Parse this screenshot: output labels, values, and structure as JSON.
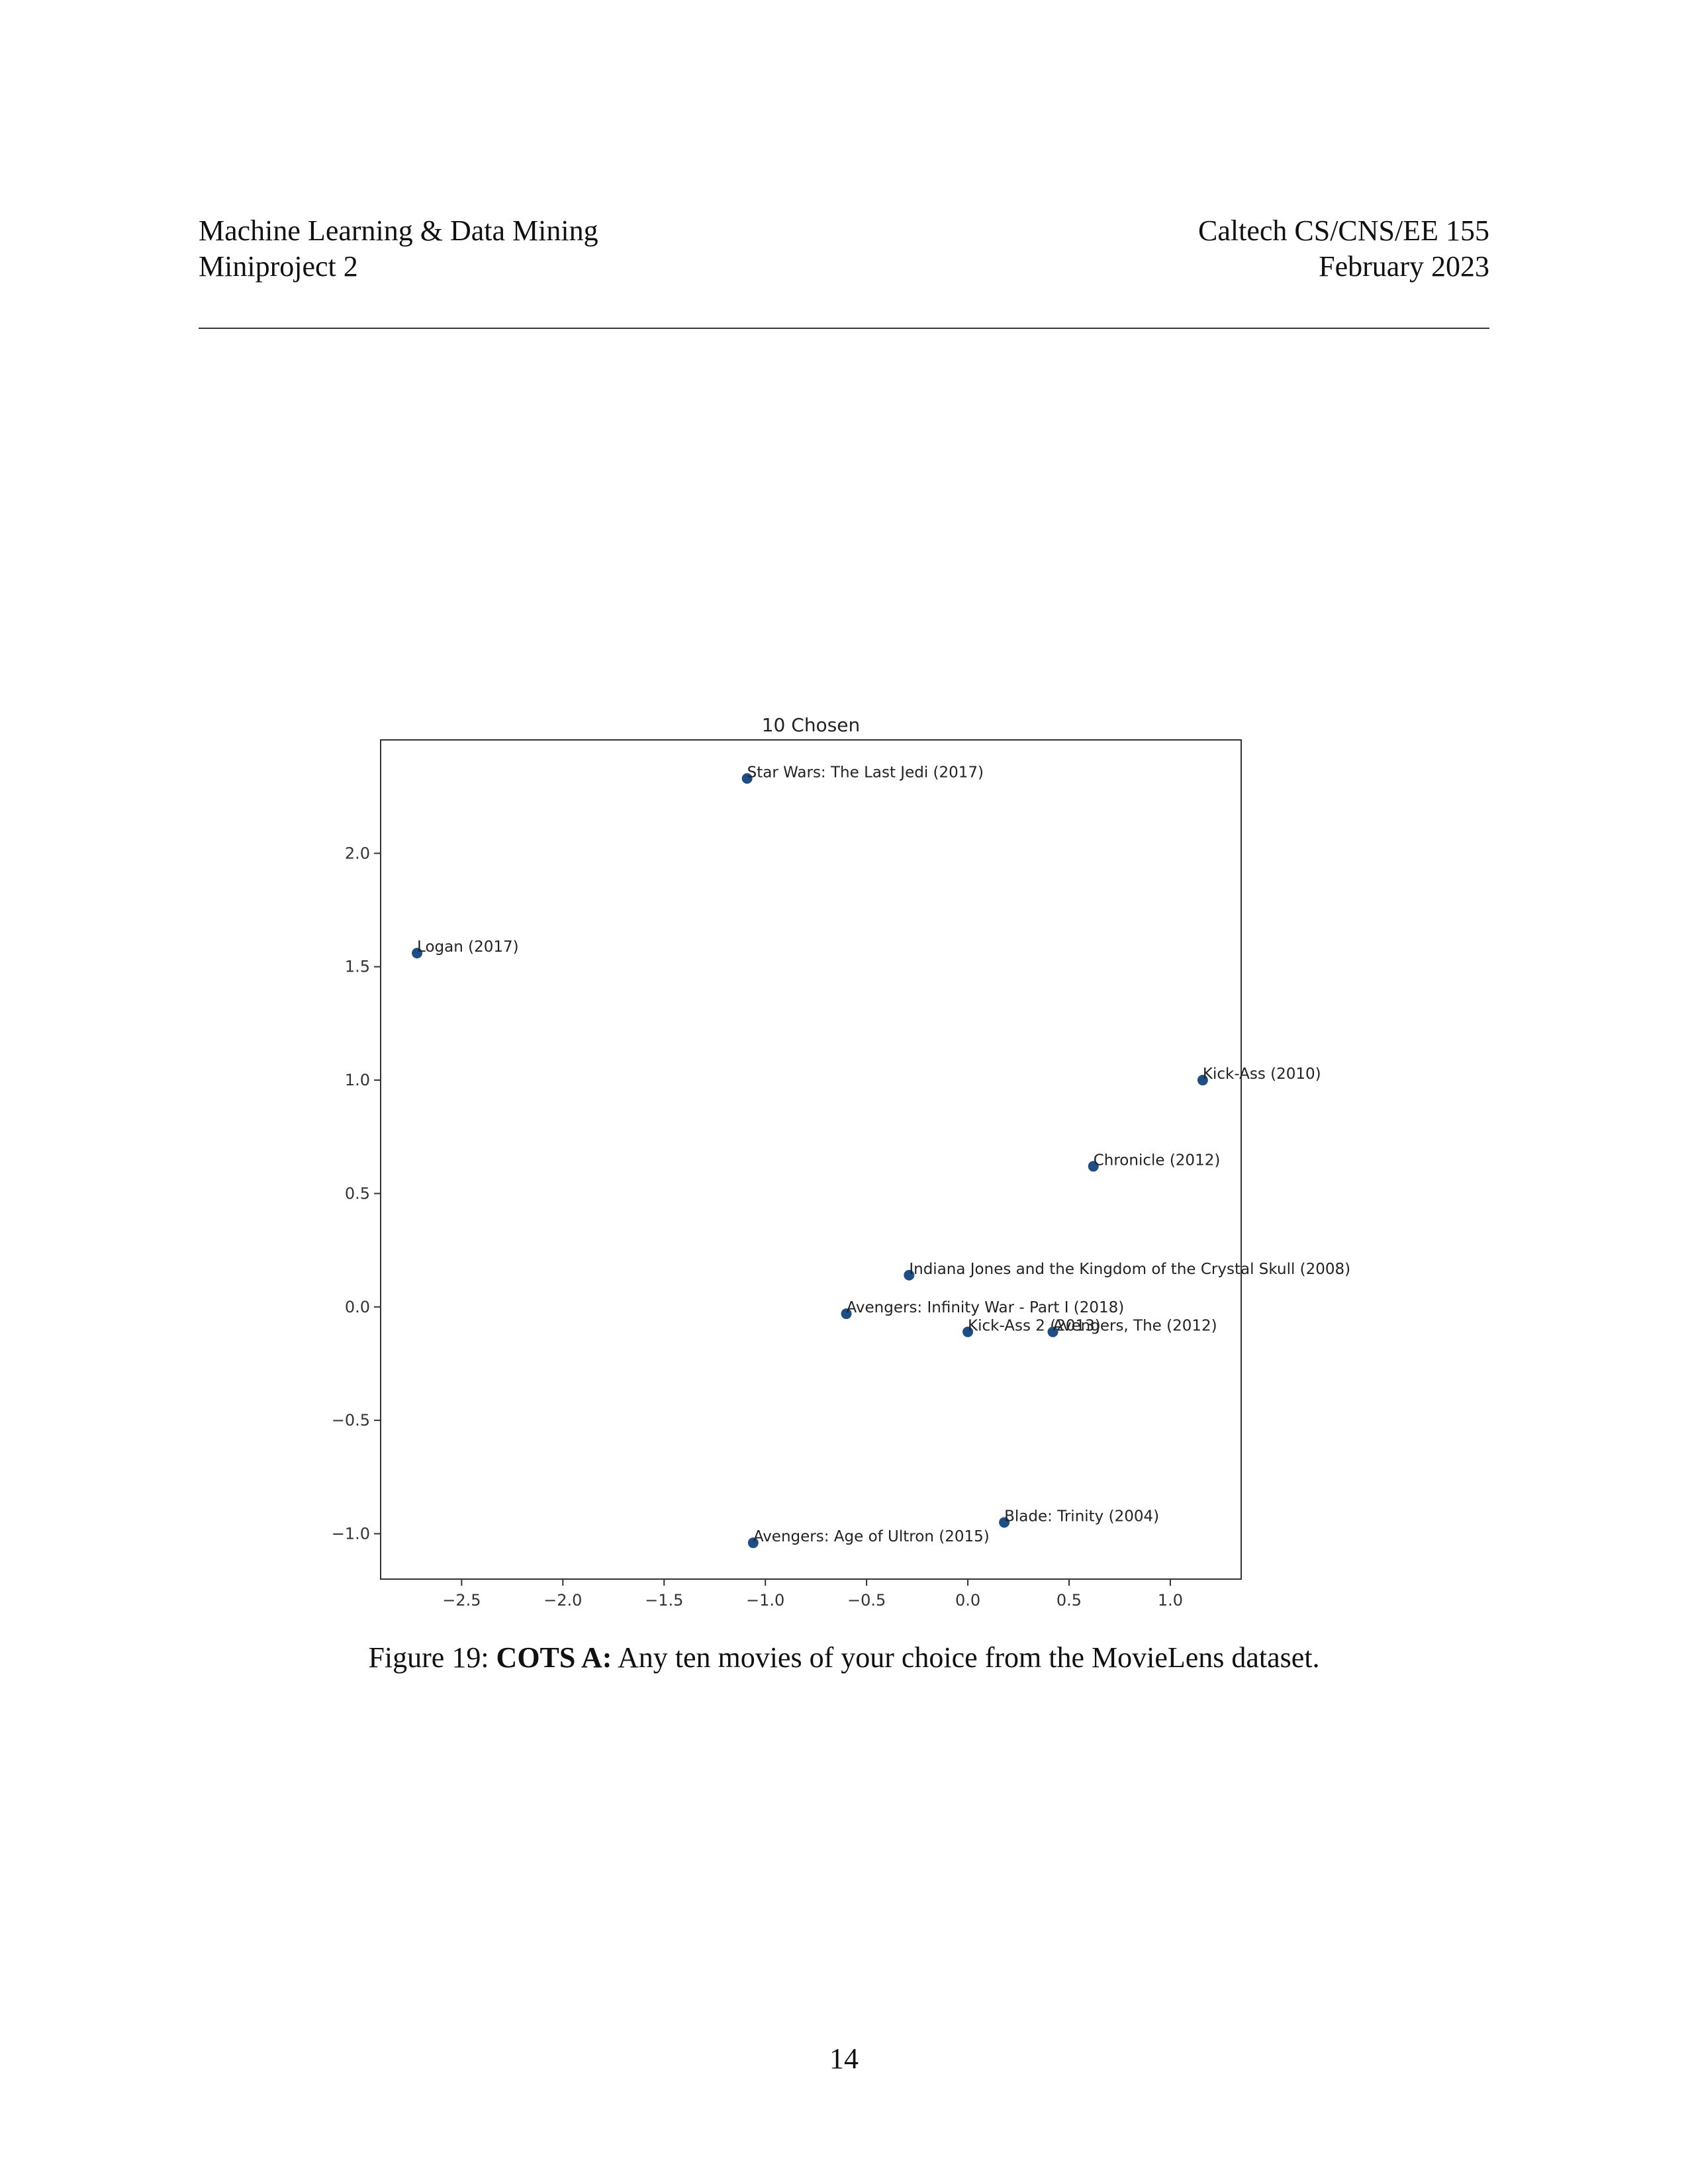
{
  "header": {
    "left_line1": "Machine Learning & Data Mining",
    "left_line2": "Miniproject 2",
    "right_line1": "Caltech CS/CNS/EE 155",
    "right_line2": "February 2023"
  },
  "caption": {
    "prefix": "Figure 19: ",
    "bold": "COTS A:",
    "text": " Any ten movies of your choice from the MovieLens dataset."
  },
  "page_number": "14",
  "chart_data": {
    "type": "scatter",
    "title": "10 Chosen",
    "xlabel": "",
    "ylabel": "",
    "xlim": [
      -2.9,
      1.35
    ],
    "ylim": [
      -1.2,
      2.5
    ],
    "xticks": [
      -2.5,
      -2.0,
      -1.5,
      -1.0,
      -0.5,
      0.0,
      0.5,
      1.0
    ],
    "xtick_labels": [
      "−2.5",
      "−2.0",
      "−1.5",
      "−1.0",
      "−0.5",
      "0.0",
      "0.5",
      "1.0"
    ],
    "yticks": [
      -1.0,
      -0.5,
      0.0,
      0.5,
      1.0,
      1.5,
      2.0
    ],
    "ytick_labels": [
      "−1.0",
      "−0.5",
      "0.0",
      "0.5",
      "1.0",
      "1.5",
      "2.0"
    ],
    "grid": false,
    "marker_color": "#1f4e84",
    "points": [
      {
        "x": -1.09,
        "y": 2.33,
        "label": "Star Wars: The Last Jedi (2017)"
      },
      {
        "x": -2.72,
        "y": 1.56,
        "label": "Logan (2017)"
      },
      {
        "x": 1.16,
        "y": 1.0,
        "label": "Kick-Ass (2010)"
      },
      {
        "x": 0.62,
        "y": 0.62,
        "label": "Chronicle (2012)"
      },
      {
        "x": -0.29,
        "y": 0.14,
        "label": "Indiana Jones and the Kingdom of the Crystal Skull (2008)"
      },
      {
        "x": -0.6,
        "y": -0.03,
        "label": "Avengers: Infinity War - Part I (2018)"
      },
      {
        "x": 0.0,
        "y": -0.11,
        "label": "Kick-Ass 2 (2013)"
      },
      {
        "x": 0.42,
        "y": -0.11,
        "label": "Avengers, The (2012)"
      },
      {
        "x": 0.18,
        "y": -0.95,
        "label": "Blade: Trinity (2004)"
      },
      {
        "x": -1.06,
        "y": -1.04,
        "label": "Avengers: Age of Ultron (2015)"
      }
    ]
  }
}
